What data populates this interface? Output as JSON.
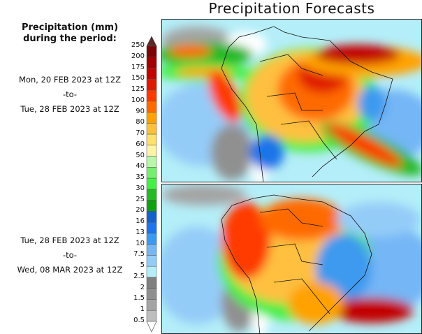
{
  "title": "Precipitation Forecasts",
  "legend": {
    "title_line1": "Precipitation (mm)",
    "title_line2": "during the period:",
    "levels": [
      "250",
      "200",
      "175",
      "150",
      "125",
      "100",
      "90",
      "80",
      "70",
      "60",
      "50",
      "40",
      "35",
      "30",
      "25",
      "20",
      "16",
      "13",
      "10",
      "7.5",
      "5",
      "2.5",
      "2",
      "1.5",
      "1",
      "0.5"
    ],
    "colors": [
      "#7a0505",
      "#a00000",
      "#c20000",
      "#e01a00",
      "#ff3a00",
      "#ff6a00",
      "#ffa200",
      "#ffc040",
      "#ffe070",
      "#fff4a4",
      "#b8f8a8",
      "#78ee70",
      "#48ee48",
      "#28b828",
      "#10a010",
      "#1462c8",
      "#1e74e8",
      "#3c9aee",
      "#74b6f6",
      "#94ccf8",
      "#b4eef8",
      "#808080",
      "#909090",
      "#a4a4a4",
      "#bebebe"
    ],
    "top_arrow_color": "#5a2a26",
    "bottom_arrow_color": "#ffffff"
  },
  "periods": [
    {
      "start": "Mon, 20 FEB 2023 at 12Z",
      "sep": "-to-",
      "end": "Tue, 28 FEB 2023 at 12Z"
    },
    {
      "start": "Tue, 28 FEB 2023 at 12Z",
      "sep": "-to-",
      "end": "Wed, 08 MAR 2023 at 12Z"
    }
  ]
}
